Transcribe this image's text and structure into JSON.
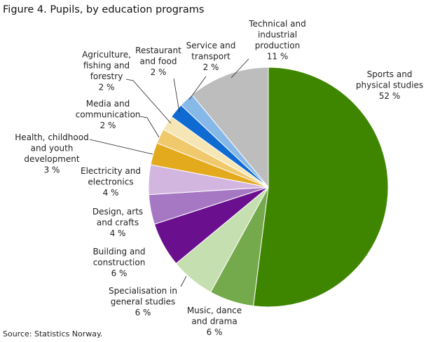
{
  "title": "Figure 4. Pupils, by education programs",
  "source": "Source: Statistics Norway.",
  "chart_data": {
    "type": "pie",
    "title": "Figure 4. Pupils, by education programs",
    "unit": "%",
    "start": "12 o'clock",
    "direction": "clockwise",
    "slices": [
      {
        "label": [
          "Sports and",
          "physical studies"
        ],
        "value": 52,
        "text": "52 %",
        "color": "#3f8600"
      },
      {
        "label": [
          "Music, dance",
          "and drama"
        ],
        "value": 6,
        "text": "6 %",
        "color": "#75aa4c"
      },
      {
        "label": [
          "Specialisation in",
          "general studies"
        ],
        "value": 6,
        "text": "6 %",
        "color": "#c6dfb0"
      },
      {
        "label": [
          "Building and",
          "construction"
        ],
        "value": 6,
        "text": "6 %",
        "color": "#6a0f8e"
      },
      {
        "label": [
          "Design, arts",
          "and crafts"
        ],
        "value": 4,
        "text": "4 %",
        "color": "#a678c4"
      },
      {
        "label": [
          "Electricity and",
          "electronics"
        ],
        "value": 4,
        "text": "4 %",
        "color": "#d3b6df"
      },
      {
        "label": [
          "Health, childhood",
          "and youth",
          "development"
        ],
        "value": 3,
        "text": "3 %",
        "color": "#e3aa1e"
      },
      {
        "label": [
          "Media and",
          "communication"
        ],
        "value": 2,
        "text": "2 %",
        "color": "#f0c96c"
      },
      {
        "label": [
          "Agriculture,",
          "fishing and",
          "forestry"
        ],
        "value": 2,
        "text": "2 %",
        "color": "#f7e6b5"
      },
      {
        "label": [
          "Restaurant",
          "and food"
        ],
        "value": 2,
        "text": "2 %",
        "color": "#0f6bd1"
      },
      {
        "label": [
          "Service and",
          "transport"
        ],
        "value": 2,
        "text": "2 %",
        "color": "#86b8e8"
      },
      {
        "label": [
          "Technical and",
          "industrial",
          "production"
        ],
        "value": 11,
        "text": "11 %",
        "color": "#bdbdbd"
      }
    ]
  }
}
